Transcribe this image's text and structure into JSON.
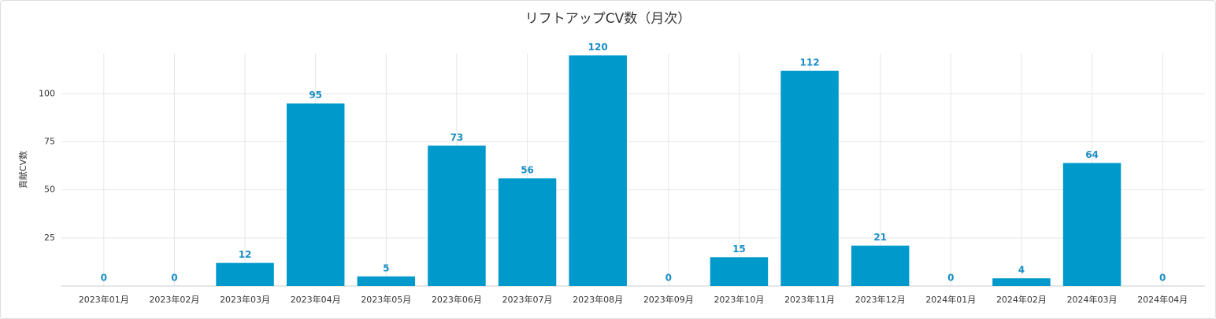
{
  "chart_data": {
    "type": "bar",
    "title": "リフトアップCV数（月次）",
    "y_label": "貢献CV数",
    "categories": [
      "2023年01月",
      "2023年02月",
      "2023年03月",
      "2023年04月",
      "2023年05月",
      "2023年06月",
      "2023年07月",
      "2023年08月",
      "2023年09月",
      "2023年10月",
      "2023年11月",
      "2023年12月",
      "2024年01月",
      "2024年02月",
      "2024年03月",
      "2024年04月"
    ],
    "values": [
      0,
      0,
      12,
      95,
      5,
      73,
      56,
      120,
      0,
      15,
      112,
      21,
      0,
      4,
      64,
      0
    ],
    "color": "#0099cc",
    "label_color": "#1a8fc4",
    "ylim": [
      0,
      121
    ],
    "yticks": [
      25,
      50,
      75,
      100
    ],
    "grid": true
  }
}
